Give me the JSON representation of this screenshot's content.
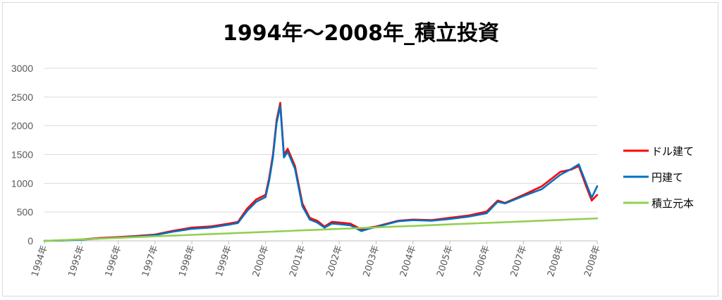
{
  "chart_data": {
    "type": "line",
    "title": "1994年〜2008年_積立投資",
    "xlabel": "",
    "ylabel": "",
    "ylim": [
      0,
      3000
    ],
    "yticks": [
      0,
      500,
      1000,
      1500,
      2000,
      2500,
      3000
    ],
    "x_tick_labels": [
      "1994年",
      "1995年",
      "1996年",
      "1997年",
      "1998年",
      "1999年",
      "2000年",
      "2001年",
      "2002年",
      "2003年",
      "2004年",
      "2005年",
      "2006年",
      "2007年",
      "2008年",
      "2008年"
    ],
    "grid": true,
    "legend_position": "right",
    "x": [
      1994.0,
      1994.5,
      1995.0,
      1995.5,
      1996.0,
      1996.5,
      1997.0,
      1997.5,
      1998.0,
      1998.5,
      1999.0,
      1999.25,
      1999.5,
      1999.75,
      2000.0,
      2000.1,
      2000.2,
      2000.3,
      2000.4,
      2000.5,
      2000.6,
      2000.8,
      2001.0,
      2001.2,
      2001.4,
      2001.6,
      2001.8,
      2002.0,
      2002.3,
      2002.6,
      2002.8,
      2003.0,
      2003.3,
      2003.6,
      2004.0,
      2004.5,
      2005.0,
      2005.5,
      2006.0,
      2006.3,
      2006.5,
      2007.0,
      2007.5,
      2008.0,
      2008.3,
      2008.5,
      2008.7,
      2008.85,
      2009.0
    ],
    "series": [
      {
        "name": "ドル建て",
        "color": "#ff0000",
        "values": [
          0,
          8,
          25,
          50,
          65,
          85,
          110,
          175,
          230,
          250,
          300,
          330,
          560,
          720,
          800,
          1100,
          1500,
          2100,
          2400,
          1500,
          1600,
          1300,
          650,
          400,
          350,
          250,
          330,
          320,
          300,
          200,
          230,
          250,
          300,
          350,
          370,
          360,
          400,
          440,
          510,
          700,
          660,
          800,
          950,
          1200,
          1240,
          1300,
          950,
          700,
          800
        ]
      },
      {
        "name": "円建て",
        "color": "#0070c0",
        "values": [
          0,
          6,
          20,
          40,
          55,
          75,
          100,
          160,
          210,
          230,
          280,
          310,
          520,
          680,
          760,
          1050,
          1450,
          2050,
          2350,
          1450,
          1550,
          1250,
          600,
          370,
          320,
          230,
          300,
          290,
          270,
          170,
          210,
          240,
          290,
          340,
          360,
          350,
          380,
          420,
          480,
          680,
          650,
          780,
          900,
          1150,
          1250,
          1330,
          1000,
          750,
          950
        ]
      },
      {
        "name": "積立元本",
        "color": "#92d050",
        "values": [
          0,
          13,
          26,
          39,
          52,
          65,
          78,
          91,
          104,
          117,
          130,
          137,
          143,
          150,
          156,
          159,
          161,
          164,
          166,
          169,
          172,
          177,
          182,
          187,
          192,
          198,
          203,
          208,
          216,
          224,
          229,
          234,
          242,
          250,
          260,
          273,
          286,
          299,
          312,
          320,
          325,
          338,
          351,
          364,
          372,
          377,
          382,
          386,
          390
        ]
      }
    ]
  }
}
